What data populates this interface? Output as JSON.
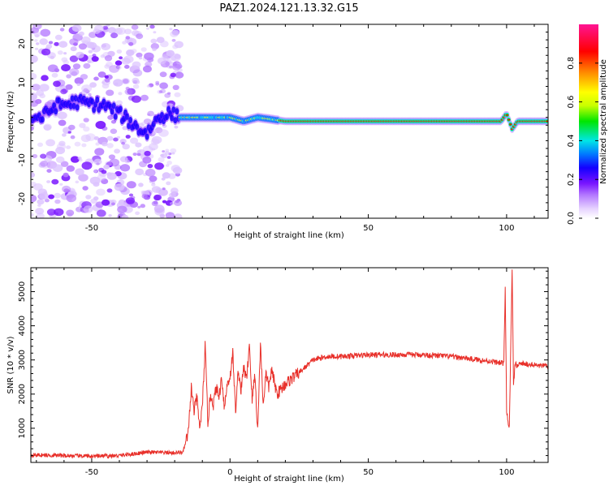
{
  "title": "PAZ1.2024.121.13.32.G15",
  "chart_data": [
    {
      "type": "heatmap",
      "name": "spectrogram",
      "xlabel": "Height of straight line (km)",
      "ylabel": "Frequency (Hz)",
      "xlim": [
        -72,
        115
      ],
      "ylim": [
        -25,
        25
      ],
      "xticks": [
        -50,
        0,
        50,
        100
      ],
      "yticks": [
        -20,
        -10,
        0,
        10,
        20
      ],
      "grid": false,
      "colorbar": {
        "label": "Normalized spectral amplitude",
        "range": [
          0,
          1
        ],
        "ticks": [
          "0.0",
          "0.2",
          "0.4",
          "0.6",
          "0.8"
        ],
        "colormap": [
          "#ffffff",
          "#e6d2ff",
          "#b478ff",
          "#7814ff",
          "#1400ff",
          "#0078ff",
          "#00e6e6",
          "#00e600",
          "#c8ff00",
          "#ffff00",
          "#ff8c00",
          "#ff0000",
          "#ff1493"
        ]
      },
      "trace": {
        "description_points": [
          [
            -72,
            1
          ],
          [
            -68,
            1
          ],
          [
            -63,
            4
          ],
          [
            -55,
            5
          ],
          [
            -45,
            4
          ],
          [
            -38,
            1
          ],
          [
            -33,
            -2
          ],
          [
            -30,
            -3
          ],
          [
            -26,
            1
          ],
          [
            -22,
            2
          ],
          [
            -18,
            1
          ],
          [
            -14,
            1
          ],
          [
            -5,
            1
          ],
          [
            0,
            1
          ],
          [
            5,
            0
          ],
          [
            10,
            1
          ],
          [
            15,
            0.5
          ],
          [
            20,
            0
          ],
          [
            40,
            0
          ],
          [
            60,
            0
          ],
          [
            80,
            0
          ],
          [
            98,
            0
          ],
          [
            100,
            2
          ],
          [
            102,
            -2
          ],
          [
            104,
            0
          ],
          [
            115,
            0
          ]
        ],
        "noise_x_range": [
          -72,
          -18
        ]
      }
    },
    {
      "type": "line",
      "name": "snr",
      "xlabel": "Height of straight line (km)",
      "ylabel": "SNR (10 * v/v)",
      "xlim": [
        -72,
        115
      ],
      "ylim": [
        0,
        5700
      ],
      "xticks": [
        -50,
        0,
        50,
        100
      ],
      "yticks": [
        1000,
        2000,
        3000,
        4000,
        5000
      ],
      "grid": false,
      "series": [
        {
          "color": "#e8302a",
          "x": [
            -72,
            -60,
            -50,
            -40,
            -30,
            -20,
            -17,
            -15,
            -14,
            -13,
            -12,
            -11,
            -10,
            -9,
            -8,
            -7,
            -6,
            -5,
            -4,
            -3,
            -2,
            -1,
            0,
            1,
            2,
            3,
            4,
            5,
            6,
            7,
            8,
            9,
            10,
            11,
            12,
            13,
            14,
            15,
            17,
            20,
            23,
            26,
            30,
            35,
            40,
            50,
            60,
            70,
            80,
            90,
            95,
            99,
            99.5,
            100,
            100.5,
            101,
            102,
            102.5,
            103,
            104,
            105,
            110,
            115
          ],
          "y": [
            220,
            200,
            180,
            200,
            300,
            280,
            300,
            900,
            2200,
            1500,
            1900,
            1000,
            1600,
            3400,
            1200,
            2000,
            1700,
            2200,
            1900,
            2500,
            1600,
            2300,
            2500,
            3200,
            1500,
            2700,
            2100,
            2800,
            2400,
            3500,
            1800,
            2600,
            900,
            3500,
            1700,
            2600,
            2200,
            2700,
            2000,
            2300,
            2500,
            2700,
            3000,
            3100,
            3100,
            3150,
            3150,
            3150,
            3100,
            3000,
            2950,
            2900,
            5150,
            1500,
            1200,
            1050,
            5700,
            2200,
            2900,
            2800,
            2900,
            2850,
            2800
          ]
        }
      ]
    }
  ]
}
